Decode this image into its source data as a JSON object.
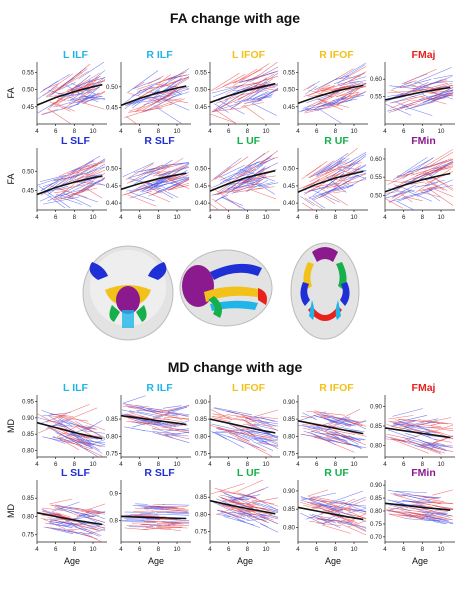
{
  "colors": {
    "ILF": "#1fb5e9",
    "IFOF": "#f2c21b",
    "SLF": "#1f2fd6",
    "UF": "#16b04a",
    "FMaj": "#e8211c",
    "FMin": "#8b1a8e",
    "red_lines": "#ee4444",
    "blue_lines": "#4455ee",
    "trend": "#111111"
  },
  "brain_views": [
    {
      "view": "coronal"
    },
    {
      "view": "sagittal"
    },
    {
      "view": "axial"
    }
  ],
  "chart_data": [
    {
      "section_title": "FA change with age",
      "type": "line",
      "ylabel": "FA",
      "xticks": [
        4,
        6,
        8,
        10
      ],
      "xlim": [
        4,
        11.5
      ],
      "panels": [
        {
          "title": "L ILF",
          "color_key": "ILF",
          "yticks": [
            "0.45",
            "0.50",
            "0.55"
          ],
          "ylim": [
            0.4,
            0.58
          ],
          "trend": [
            [
              4,
              0.455
            ],
            [
              6,
              0.477
            ],
            [
              8,
              0.494
            ],
            [
              10,
              0.508
            ],
            [
              11,
              0.514
            ]
          ]
        },
        {
          "title": "R ILF",
          "color_key": "ILF",
          "yticks": [
            "0.45",
            "0.50"
          ],
          "ylim": [
            0.41,
            0.56
          ],
          "trend": [
            [
              4,
              0.455
            ],
            [
              6,
              0.472
            ],
            [
              8,
              0.486
            ],
            [
              10,
              0.497
            ],
            [
              11,
              0.502
            ]
          ]
        },
        {
          "title": "L IFOF",
          "color_key": "IFOF",
          "yticks": [
            "0.45",
            "0.50",
            "0.55"
          ],
          "ylim": [
            0.4,
            0.58
          ],
          "trend": [
            [
              4,
              0.462
            ],
            [
              6,
              0.482
            ],
            [
              8,
              0.498
            ],
            [
              10,
              0.511
            ],
            [
              11,
              0.517
            ]
          ]
        },
        {
          "title": "R IFOF",
          "color_key": "IFOF",
          "yticks": [
            "0.45",
            "0.50",
            "0.55"
          ],
          "ylim": [
            0.4,
            0.58
          ],
          "trend": [
            [
              4,
              0.46
            ],
            [
              6,
              0.479
            ],
            [
              8,
              0.495
            ],
            [
              10,
              0.507
            ],
            [
              11,
              0.512
            ]
          ]
        },
        {
          "title": "FMaj",
          "color_key": "FMaj",
          "yticks": [
            "0.55",
            "0.60"
          ],
          "ylim": [
            0.47,
            0.65
          ],
          "trend": [
            [
              4,
              0.54
            ],
            [
              6,
              0.552
            ],
            [
              8,
              0.563
            ],
            [
              10,
              0.572
            ],
            [
              11,
              0.576
            ]
          ]
        },
        {
          "title": "L SLF",
          "color_key": "SLF",
          "yticks": [
            "0.45",
            "0.50"
          ],
          "ylim": [
            0.4,
            0.56
          ],
          "trend": [
            [
              4,
              0.44
            ],
            [
              6,
              0.458
            ],
            [
              8,
              0.472
            ],
            [
              10,
              0.483
            ],
            [
              11,
              0.488
            ]
          ]
        },
        {
          "title": "R SLF",
          "color_key": "SLF",
          "yticks": [
            "0.40",
            "0.45",
            "0.50"
          ],
          "ylim": [
            0.38,
            0.56
          ],
          "trend": [
            [
              4,
              0.44
            ],
            [
              6,
              0.457
            ],
            [
              8,
              0.471
            ],
            [
              10,
              0.482
            ],
            [
              11,
              0.487
            ]
          ]
        },
        {
          "title": "L UF",
          "color_key": "UF",
          "yticks": [
            "0.40",
            "0.45",
            "0.50"
          ],
          "ylim": [
            0.38,
            0.56
          ],
          "trend": [
            [
              4,
              0.435
            ],
            [
              6,
              0.457
            ],
            [
              8,
              0.475
            ],
            [
              10,
              0.488
            ],
            [
              11,
              0.494
            ]
          ]
        },
        {
          "title": "R UF",
          "color_key": "UF",
          "yticks": [
            "0.40",
            "0.45",
            "0.50"
          ],
          "ylim": [
            0.38,
            0.56
          ],
          "trend": [
            [
              4,
              0.432
            ],
            [
              6,
              0.455
            ],
            [
              8,
              0.473
            ],
            [
              10,
              0.486
            ],
            [
              11,
              0.492
            ]
          ]
        },
        {
          "title": "FMin",
          "color_key": "FMin",
          "yticks": [
            "0.50",
            "0.55",
            "0.60"
          ],
          "ylim": [
            0.46,
            0.63
          ],
          "trend": [
            [
              4,
              0.51
            ],
            [
              6,
              0.528
            ],
            [
              8,
              0.543
            ],
            [
              10,
              0.555
            ],
            [
              11,
              0.56
            ]
          ]
        }
      ]
    },
    {
      "section_title": "MD change with age",
      "type": "line",
      "ylabel": "MD",
      "xlabel": "Age",
      "xticks": [
        4,
        6,
        8,
        10
      ],
      "xlim": [
        4,
        11.5
      ],
      "panels": [
        {
          "title": "L ILF",
          "color_key": "ILF",
          "yticks": [
            "0.80",
            "0.85",
            "0.90",
            "0.95"
          ],
          "ylim": [
            0.78,
            0.97
          ],
          "trend": [
            [
              4,
              0.885
            ],
            [
              6,
              0.87
            ],
            [
              8,
              0.855
            ],
            [
              10,
              0.842
            ],
            [
              11,
              0.836
            ]
          ]
        },
        {
          "title": "R ILF",
          "color_key": "ILF",
          "yticks": [
            "0.75",
            "0.80",
            "0.85"
          ],
          "ylim": [
            0.74,
            0.92
          ],
          "trend": [
            [
              4,
              0.86
            ],
            [
              6,
              0.853
            ],
            [
              8,
              0.845
            ],
            [
              10,
              0.838
            ],
            [
              11,
              0.834
            ]
          ]
        },
        {
          "title": "L IFOF",
          "color_key": "IFOF",
          "yticks": [
            "0.75",
            "0.80",
            "0.85",
            "0.90"
          ],
          "ylim": [
            0.74,
            0.92
          ],
          "trend": [
            [
              4,
              0.85
            ],
            [
              6,
              0.838
            ],
            [
              8,
              0.826
            ],
            [
              10,
              0.815
            ],
            [
              11,
              0.81
            ]
          ]
        },
        {
          "title": "R IFOF",
          "color_key": "IFOF",
          "yticks": [
            "0.75",
            "0.80",
            "0.85",
            "0.90"
          ],
          "ylim": [
            0.74,
            0.92
          ],
          "trend": [
            [
              4,
              0.845
            ],
            [
              6,
              0.834
            ],
            [
              8,
              0.823
            ],
            [
              10,
              0.813
            ],
            [
              11,
              0.808
            ]
          ]
        },
        {
          "title": "FMaj",
          "color_key": "FMaj",
          "yticks": [
            "0.80",
            "0.85",
            "0.90"
          ],
          "ylim": [
            0.77,
            0.93
          ],
          "trend": [
            [
              4,
              0.845
            ],
            [
              6,
              0.838
            ],
            [
              8,
              0.831
            ],
            [
              10,
              0.824
            ],
            [
              11,
              0.82
            ]
          ]
        },
        {
          "title": "L SLF",
          "color_key": "SLF",
          "yticks": [
            "0.75",
            "0.80",
            "0.85"
          ],
          "ylim": [
            0.73,
            0.9
          ],
          "trend": [
            [
              4,
              0.81
            ],
            [
              6,
              0.8
            ],
            [
              8,
              0.79
            ],
            [
              10,
              0.782
            ],
            [
              11,
              0.778
            ]
          ]
        },
        {
          "title": "R SLF",
          "color_key": "SLF",
          "yticks": [
            "0.8",
            "0.9"
          ],
          "ylim": [
            0.72,
            0.95
          ],
          "trend": [
            [
              4,
              0.815
            ],
            [
              6,
              0.812
            ],
            [
              8,
              0.81
            ],
            [
              10,
              0.808
            ],
            [
              11,
              0.807
            ]
          ]
        },
        {
          "title": "L UF",
          "color_key": "UF",
          "yticks": [
            "0.75",
            "0.80",
            "0.85"
          ],
          "ylim": [
            0.72,
            0.9
          ],
          "trend": [
            [
              4,
              0.84
            ],
            [
              6,
              0.828
            ],
            [
              8,
              0.817
            ],
            [
              10,
              0.807
            ],
            [
              11,
              0.802
            ]
          ]
        },
        {
          "title": "R UF",
          "color_key": "UF",
          "yticks": [
            "0.80",
            "0.85",
            "0.90"
          ],
          "ylim": [
            0.76,
            0.93
          ],
          "trend": [
            [
              4,
              0.855
            ],
            [
              6,
              0.845
            ],
            [
              8,
              0.835
            ],
            [
              10,
              0.826
            ],
            [
              11,
              0.822
            ]
          ]
        },
        {
          "title": "FMin",
          "color_key": "FMin",
          "yticks": [
            "0.70",
            "0.75",
            "0.80",
            "0.85",
            "0.90"
          ],
          "ylim": [
            0.68,
            0.92
          ],
          "trend": [
            [
              4,
              0.83
            ],
            [
              6,
              0.822
            ],
            [
              8,
              0.814
            ],
            [
              10,
              0.807
            ],
            [
              11,
              0.803
            ]
          ]
        }
      ]
    }
  ]
}
